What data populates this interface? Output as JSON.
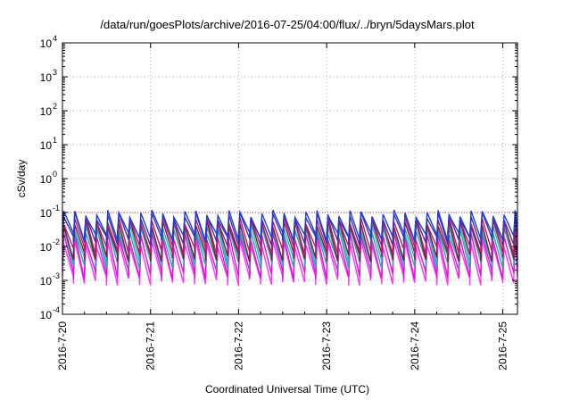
{
  "chart_data": {
    "type": "line",
    "title": "/data/run/goesPlots/archive/2016-07-25/04:00/flux/../bryn/5daysMars.plot",
    "xlabel": "Coordinated Universal Time (UTC)",
    "ylabel": "cSv/day",
    "y_scale": "log",
    "ylim": [
      0.0001,
      10000
    ],
    "xlim": [
      "2016-07-20 00:00",
      "2016-07-25 04:00"
    ],
    "grid": true,
    "y_ticks": [
      {
        "base": "10",
        "exp": "-4"
      },
      {
        "base": "10",
        "exp": "-3"
      },
      {
        "base": "10",
        "exp": "-2"
      },
      {
        "base": "10",
        "exp": "-1"
      },
      {
        "base": "10",
        "exp": "0"
      },
      {
        "base": "10",
        "exp": "1"
      },
      {
        "base": "10",
        "exp": "2"
      },
      {
        "base": "10",
        "exp": "3"
      },
      {
        "base": "10",
        "exp": "4"
      }
    ],
    "x_ticks": [
      "2016-7-20",
      "2016-7-21",
      "2016-7-22",
      "2016-7-23",
      "2016-7-24",
      "2016-7-25"
    ],
    "threshold_line": {
      "y": 0.1,
      "color": "#d42a4a"
    },
    "pattern": {
      "description": "sawtooth dose rate; rise then decay, roughly 8 cycles per day",
      "cycles_per_day": 8,
      "peak_values_range": [
        0.06,
        0.12
      ]
    },
    "series_colors": [
      "#1a3de0",
      "#4b2fa0",
      "#c0186a",
      "#7a1d3c",
      "#20b8c8",
      "#2aa8a0",
      "#e010e0",
      "#ff33ff"
    ],
    "series": [
      {
        "color": "#1a3de0",
        "peak": 0.095,
        "trough": 0.02
      },
      {
        "color": "#4b2fa0",
        "peak": 0.08,
        "trough": 0.015
      },
      {
        "color": "#c0186a",
        "peak": 0.06,
        "trough": 0.008
      },
      {
        "color": "#7a1d3c",
        "peak": 0.05,
        "trough": 0.005
      },
      {
        "color": "#20b8c8",
        "peak": 0.04,
        "trough": 0.004
      },
      {
        "color": "#2aa8a0",
        "peak": 0.03,
        "trough": 0.003
      },
      {
        "color": "#e010e0",
        "peak": 0.02,
        "trough": 0.0015
      },
      {
        "color": "#ff33ff",
        "peak": 0.012,
        "trough": 0.001
      }
    ]
  }
}
